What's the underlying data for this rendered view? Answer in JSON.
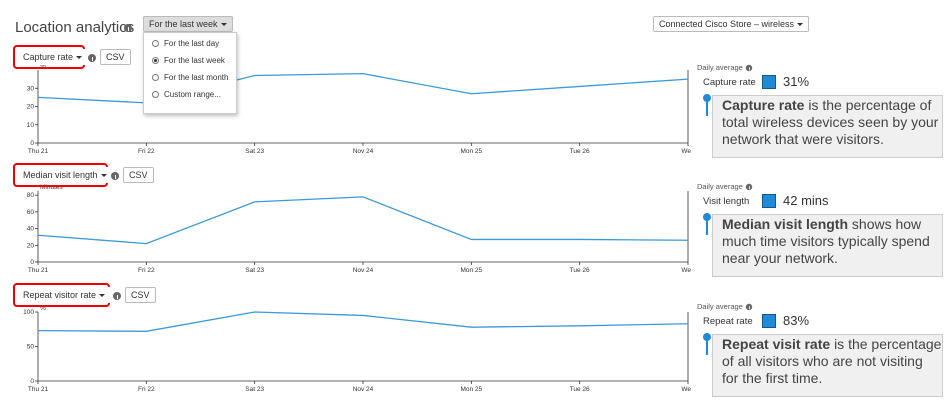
{
  "header": {
    "title": "Location analytics",
    "period_button": "For the last week",
    "store_button": "Connected Cisco Store – wireless"
  },
  "period_menu": {
    "options": [
      "For the last day",
      "For the last week",
      "For the last month",
      "Custom range..."
    ],
    "selected": 1
  },
  "chart_data": [
    {
      "type": "line",
      "title": "Capture rate",
      "csv": "CSV",
      "unit": "%",
      "categories": [
        "Thu 21",
        "Fri 22",
        "Sat 23",
        "Nov 24",
        "Mon 25",
        "Tue 26",
        "Wed"
      ],
      "values": [
        25,
        22,
        37,
        38,
        27,
        31,
        35
      ],
      "color": "#3a9ad9",
      "ylim": [
        0,
        40
      ],
      "yticks": [
        0,
        10,
        20,
        30
      ]
    },
    {
      "type": "line",
      "title": "Median visit length",
      "csv": "CSV",
      "unit": "Minutes",
      "categories": [
        "Thu 21",
        "Fri 22",
        "Sat 23",
        "Nov 24",
        "Mon 25",
        "Tue 26",
        "Wed"
      ],
      "values": [
        32,
        22,
        72,
        78,
        27,
        27,
        26
      ],
      "color": "#3a9ad9",
      "ylim": [
        0,
        85
      ],
      "yticks": [
        0,
        20,
        40,
        60,
        80
      ]
    },
    {
      "type": "line",
      "title": "Repeat visitor rate",
      "csv": "CSV",
      "unit": "%",
      "categories": [
        "Thu 21",
        "Fri 22",
        "Sat 23",
        "Nov 24",
        "Mon 25",
        "Tue 26",
        "Wed"
      ],
      "values": [
        73,
        72,
        100,
        95,
        78,
        80,
        83
      ],
      "color": "#3a9ad9",
      "ylim": [
        0,
        100
      ],
      "yticks": [
        0,
        50,
        100
      ]
    }
  ],
  "panels": [
    {
      "heading": "Daily average",
      "label": "Capture rate",
      "value": "31%",
      "bold": "Capture rate",
      "text": "is the percentage of total wireless devices seen by your network that were visitors."
    },
    {
      "heading": "Daily average",
      "label": "Visit length",
      "value": "42 mins",
      "bold": "Median visit length",
      "text": "shows how much time visitors typically spend near your network."
    },
    {
      "heading": "Daily average",
      "label": "Repeat rate",
      "value": "83%",
      "bold": "Repeat visit rate",
      "text": "is the percentage of all visitors who are not visiting for the first time."
    }
  ]
}
